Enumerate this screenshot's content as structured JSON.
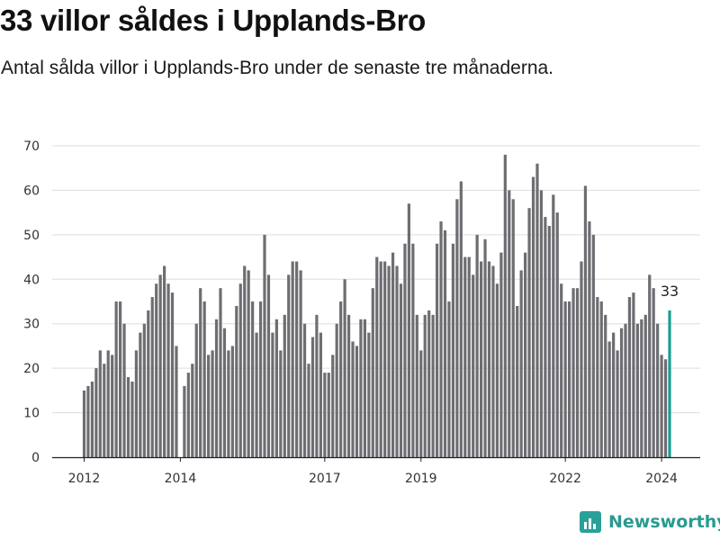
{
  "header": {
    "title": "33 villor såldes i Upplands-Bro",
    "subtitle": "Antal sålda villor i Upplands-Bro under de senaste tre månaderna."
  },
  "branding": {
    "name": "Newsworthy",
    "icon": "newsworthy-logo-icon",
    "color": "#2a9a8f"
  },
  "colors": {
    "bar": "#6e6d72",
    "highlight": "#1b9e93",
    "grid": "#dddddd",
    "axis": "#222222"
  },
  "chart_data": {
    "type": "bar",
    "x_start": "2012-01",
    "ylim": [
      0,
      70
    ],
    "yticks": [
      0,
      10,
      20,
      30,
      40,
      50,
      60,
      70
    ],
    "xticks": [
      {
        "label": "2012",
        "month": "2012-01"
      },
      {
        "label": "2014",
        "month": "2014-01"
      },
      {
        "label": "2017",
        "month": "2017-01"
      },
      {
        "label": "2019",
        "month": "2019-01"
      },
      {
        "label": "2022",
        "month": "2022-01"
      },
      {
        "label": "2024",
        "month": "2024-01"
      }
    ],
    "values": [
      15,
      16,
      17,
      20,
      24,
      21,
      24,
      23,
      35,
      35,
      30,
      18,
      17,
      24,
      28,
      30,
      33,
      36,
      39,
      41,
      43,
      39,
      37,
      25,
      null,
      16,
      19,
      21,
      30,
      38,
      35,
      23,
      24,
      31,
      38,
      29,
      24,
      25,
      34,
      39,
      43,
      42,
      35,
      28,
      35,
      50,
      41,
      28,
      31,
      24,
      32,
      41,
      44,
      44,
      42,
      30,
      21,
      27,
      32,
      28,
      19,
      19,
      23,
      30,
      35,
      40,
      32,
      26,
      25,
      31,
      31,
      28,
      38,
      45,
      44,
      44,
      43,
      46,
      43,
      39,
      48,
      57,
      48,
      32,
      24,
      32,
      33,
      32,
      48,
      53,
      51,
      35,
      48,
      58,
      62,
      45,
      45,
      41,
      50,
      44,
      49,
      44,
      43,
      39,
      46,
      68,
      60,
      58,
      34,
      42,
      46,
      56,
      63,
      66,
      60,
      54,
      52,
      59,
      55,
      39,
      35,
      35,
      38,
      38,
      44,
      61,
      53,
      50,
      36,
      35,
      32,
      26,
      28,
      24,
      29,
      30,
      36,
      37,
      30,
      31,
      32,
      41,
      38,
      30,
      23,
      22,
      33
    ],
    "highlight_index": 146,
    "highlight_label": "33"
  }
}
